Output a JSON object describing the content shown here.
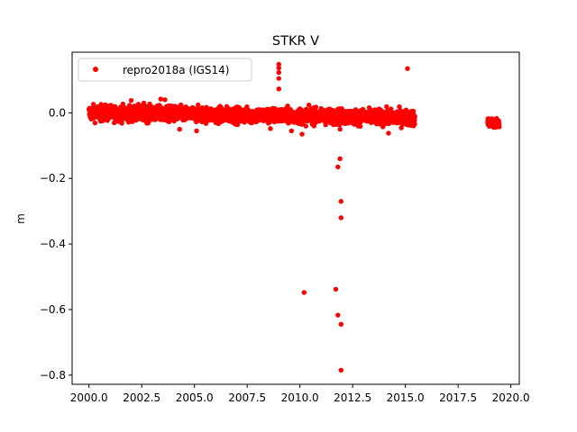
{
  "chart_data": {
    "type": "scatter",
    "title": "STKR V",
    "xlabel": "",
    "ylabel": "m",
    "xlim": [
      1999.2,
      2020.4
    ],
    "ylim": [
      -0.828,
      0.185
    ],
    "x_ticks": [
      2000.0,
      2002.5,
      2005.0,
      2007.5,
      2010.0,
      2012.5,
      2015.0,
      2017.5,
      2020.0
    ],
    "x_tick_labels": [
      "2000.0",
      "2002.5",
      "2005.0",
      "2007.5",
      "2010.0",
      "2012.5",
      "2015.0",
      "2017.5",
      "2020.0"
    ],
    "y_ticks": [
      0.0,
      -0.2,
      -0.4,
      -0.6,
      -0.8
    ],
    "y_tick_labels": [
      "0.0",
      "−0.2",
      "−0.4",
      "−0.6",
      "−0.8"
    ],
    "grid": false,
    "legend": {
      "position": "top-left",
      "entries": [
        "repro2018a (IGS14)"
      ]
    },
    "series": [
      {
        "name": "repro2018a (IGS14)",
        "color": "#ff0000",
        "marker": "circle",
        "dense_bands": [
          {
            "x_start": 2000.0,
            "x_end": 2015.45,
            "y_start": 0.0,
            "y_end": -0.015,
            "spread": 0.012
          },
          {
            "x_start": 2018.9,
            "x_end": 2019.45,
            "y_start": -0.03,
            "y_end": -0.035,
            "spread": 0.008
          }
        ],
        "points": [
          [
            2002.0,
            0.038
          ],
          [
            2003.4,
            0.042
          ],
          [
            2003.6,
            0.04
          ],
          [
            2002.6,
            0.03
          ],
          [
            2004.3,
            -0.05
          ],
          [
            2005.1,
            -0.055
          ],
          [
            2008.6,
            -0.048
          ],
          [
            2009.6,
            -0.055
          ],
          [
            2010.1,
            -0.065
          ],
          [
            2011.9,
            -0.05
          ],
          [
            2014.2,
            -0.062
          ],
          [
            2009.0,
            0.148
          ],
          [
            2009.0,
            0.137
          ],
          [
            2009.0,
            0.123
          ],
          [
            2009.0,
            0.105
          ],
          [
            2009.0,
            0.073
          ],
          [
            2015.1,
            0.135
          ],
          [
            2011.9,
            -0.14
          ],
          [
            2011.8,
            -0.165
          ],
          [
            2011.95,
            -0.27
          ],
          [
            2011.95,
            -0.32
          ],
          [
            2010.2,
            -0.548
          ],
          [
            2011.7,
            -0.538
          ],
          [
            2011.8,
            -0.617
          ],
          [
            2011.95,
            -0.645
          ],
          [
            2011.95,
            -0.785
          ]
        ]
      }
    ]
  }
}
